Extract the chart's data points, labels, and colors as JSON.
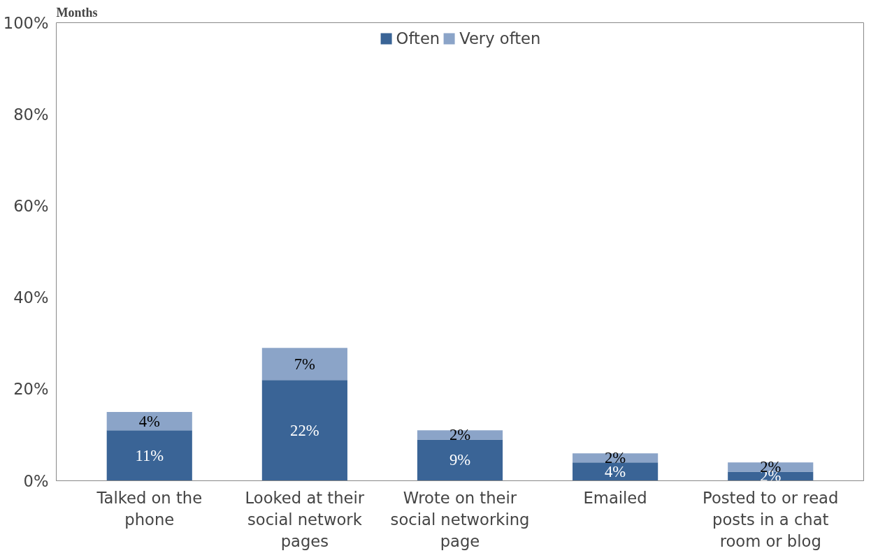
{
  "chart_data": {
    "type": "bar",
    "title": "Months",
    "stacked": true,
    "categories": [
      "Talked on the phone",
      "Looked at their social network pages",
      "Wrote on their social networking page",
      "Emailed",
      "Posted to or read posts in a chat room or blog"
    ],
    "series": [
      {
        "name": "Often",
        "color": "#3a6496",
        "values": [
          11,
          22,
          9,
          4,
          2
        ],
        "value_labels": [
          "11%",
          "22%",
          "9%",
          "4%",
          "2%"
        ]
      },
      {
        "name": "Very often",
        "color": "#8ba4c8",
        "values": [
          4,
          7,
          2,
          2,
          2
        ],
        "value_labels": [
          "4%",
          "7%",
          "2%",
          "2%",
          "2%"
        ]
      }
    ],
    "ylim": [
      0,
      100
    ],
    "yticks": [
      {
        "value": 0,
        "label": "0%"
      },
      {
        "value": 20,
        "label": "20%"
      },
      {
        "value": 40,
        "label": "40%"
      },
      {
        "value": 60,
        "label": "60%"
      },
      {
        "value": 80,
        "label": "80%"
      },
      {
        "value": 100,
        "label": "100%"
      }
    ],
    "grid": false,
    "legend": "top"
  }
}
